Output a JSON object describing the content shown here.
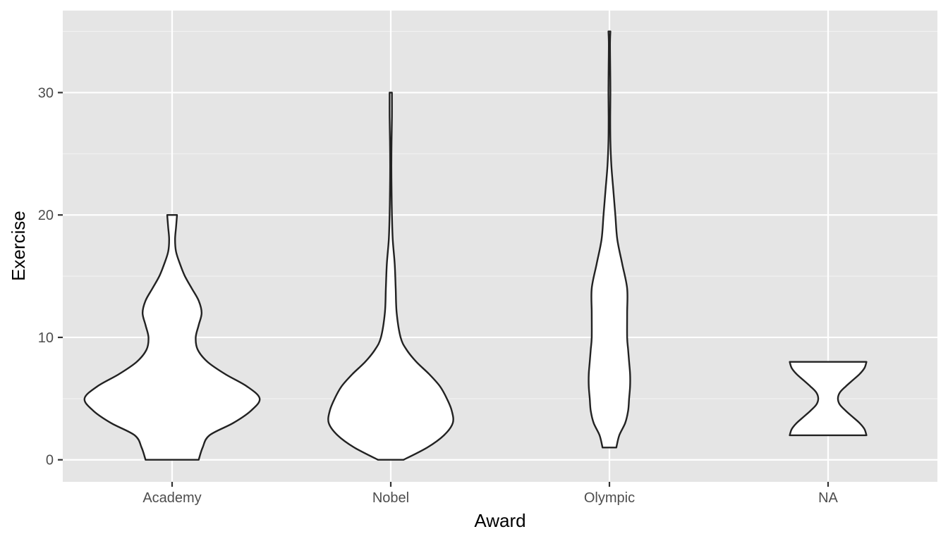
{
  "chart_data": {
    "type": "violin",
    "title": "",
    "xlabel": "Award",
    "ylabel": "Exercise",
    "categories": [
      "Academy",
      "Nobel",
      "Olympic",
      "NA"
    ],
    "ylim": [
      -1.8,
      36.7
    ],
    "yticks": [
      0,
      10,
      20,
      30
    ],
    "ytick_labels": [
      "0",
      "10",
      "20",
      "30"
    ],
    "grid": true,
    "legend": "none",
    "colors": {
      "panel_background": "#e5e5e5",
      "grid": "#ffffff",
      "violin_fill": "#ffffff",
      "violin_outline": "#222222"
    },
    "series": [
      {
        "category": "Academy",
        "min": 0,
        "max": 20,
        "density": [
          [
            0,
            0.27
          ],
          [
            1,
            0.31
          ],
          [
            2,
            0.38
          ],
          [
            3,
            0.62
          ],
          [
            4,
            0.8
          ],
          [
            5,
            0.89
          ],
          [
            6,
            0.76
          ],
          [
            7,
            0.54
          ],
          [
            8,
            0.36
          ],
          [
            9,
            0.26
          ],
          [
            10,
            0.24
          ],
          [
            11,
            0.27
          ],
          [
            12,
            0.3
          ],
          [
            13,
            0.27
          ],
          [
            14,
            0.2
          ],
          [
            15,
            0.13
          ],
          [
            16,
            0.08
          ],
          [
            17,
            0.04
          ],
          [
            18,
            0.03
          ],
          [
            19,
            0.04
          ],
          [
            20,
            0.05
          ]
        ]
      },
      {
        "category": "Nobel",
        "min": 0,
        "max": 30,
        "density": [
          [
            0,
            0.13
          ],
          [
            1,
            0.37
          ],
          [
            2,
            0.54
          ],
          [
            3,
            0.63
          ],
          [
            4,
            0.62
          ],
          [
            5,
            0.57
          ],
          [
            6,
            0.5
          ],
          [
            7,
            0.39
          ],
          [
            8,
            0.26
          ],
          [
            9,
            0.16
          ],
          [
            10,
            0.1
          ],
          [
            12,
            0.06
          ],
          [
            14,
            0.05
          ],
          [
            16,
            0.04
          ],
          [
            18,
            0.02
          ],
          [
            20,
            0.012
          ],
          [
            22,
            0.008
          ],
          [
            24,
            0.006
          ],
          [
            26,
            0.008
          ],
          [
            28,
            0.012
          ],
          [
            30,
            0.012
          ]
        ]
      },
      {
        "category": "Olympic",
        "min": 1,
        "max": 35,
        "density": [
          [
            1,
            0.07
          ],
          [
            2,
            0.1
          ],
          [
            3,
            0.16
          ],
          [
            4,
            0.19
          ],
          [
            5,
            0.2
          ],
          [
            6,
            0.21
          ],
          [
            7,
            0.21
          ],
          [
            8,
            0.2
          ],
          [
            9,
            0.19
          ],
          [
            10,
            0.18
          ],
          [
            12,
            0.18
          ],
          [
            14,
            0.18
          ],
          [
            16,
            0.13
          ],
          [
            18,
            0.08
          ],
          [
            20,
            0.06
          ],
          [
            22,
            0.04
          ],
          [
            24,
            0.02
          ],
          [
            26,
            0.01
          ],
          [
            28,
            0.008
          ],
          [
            30,
            0.01
          ],
          [
            32,
            0.008
          ],
          [
            34,
            0.006
          ],
          [
            35,
            0.01
          ]
        ]
      },
      {
        "category": "NA",
        "min": 2,
        "max": 8,
        "density": [
          [
            2,
            0.39
          ],
          [
            2.5,
            0.37
          ],
          [
            3,
            0.32
          ],
          [
            3.5,
            0.25
          ],
          [
            4,
            0.18
          ],
          [
            4.5,
            0.12
          ],
          [
            5,
            0.1
          ],
          [
            5.5,
            0.12
          ],
          [
            6,
            0.18
          ],
          [
            6.5,
            0.25
          ],
          [
            7,
            0.32
          ],
          [
            7.5,
            0.37
          ],
          [
            8,
            0.39
          ]
        ]
      }
    ]
  }
}
